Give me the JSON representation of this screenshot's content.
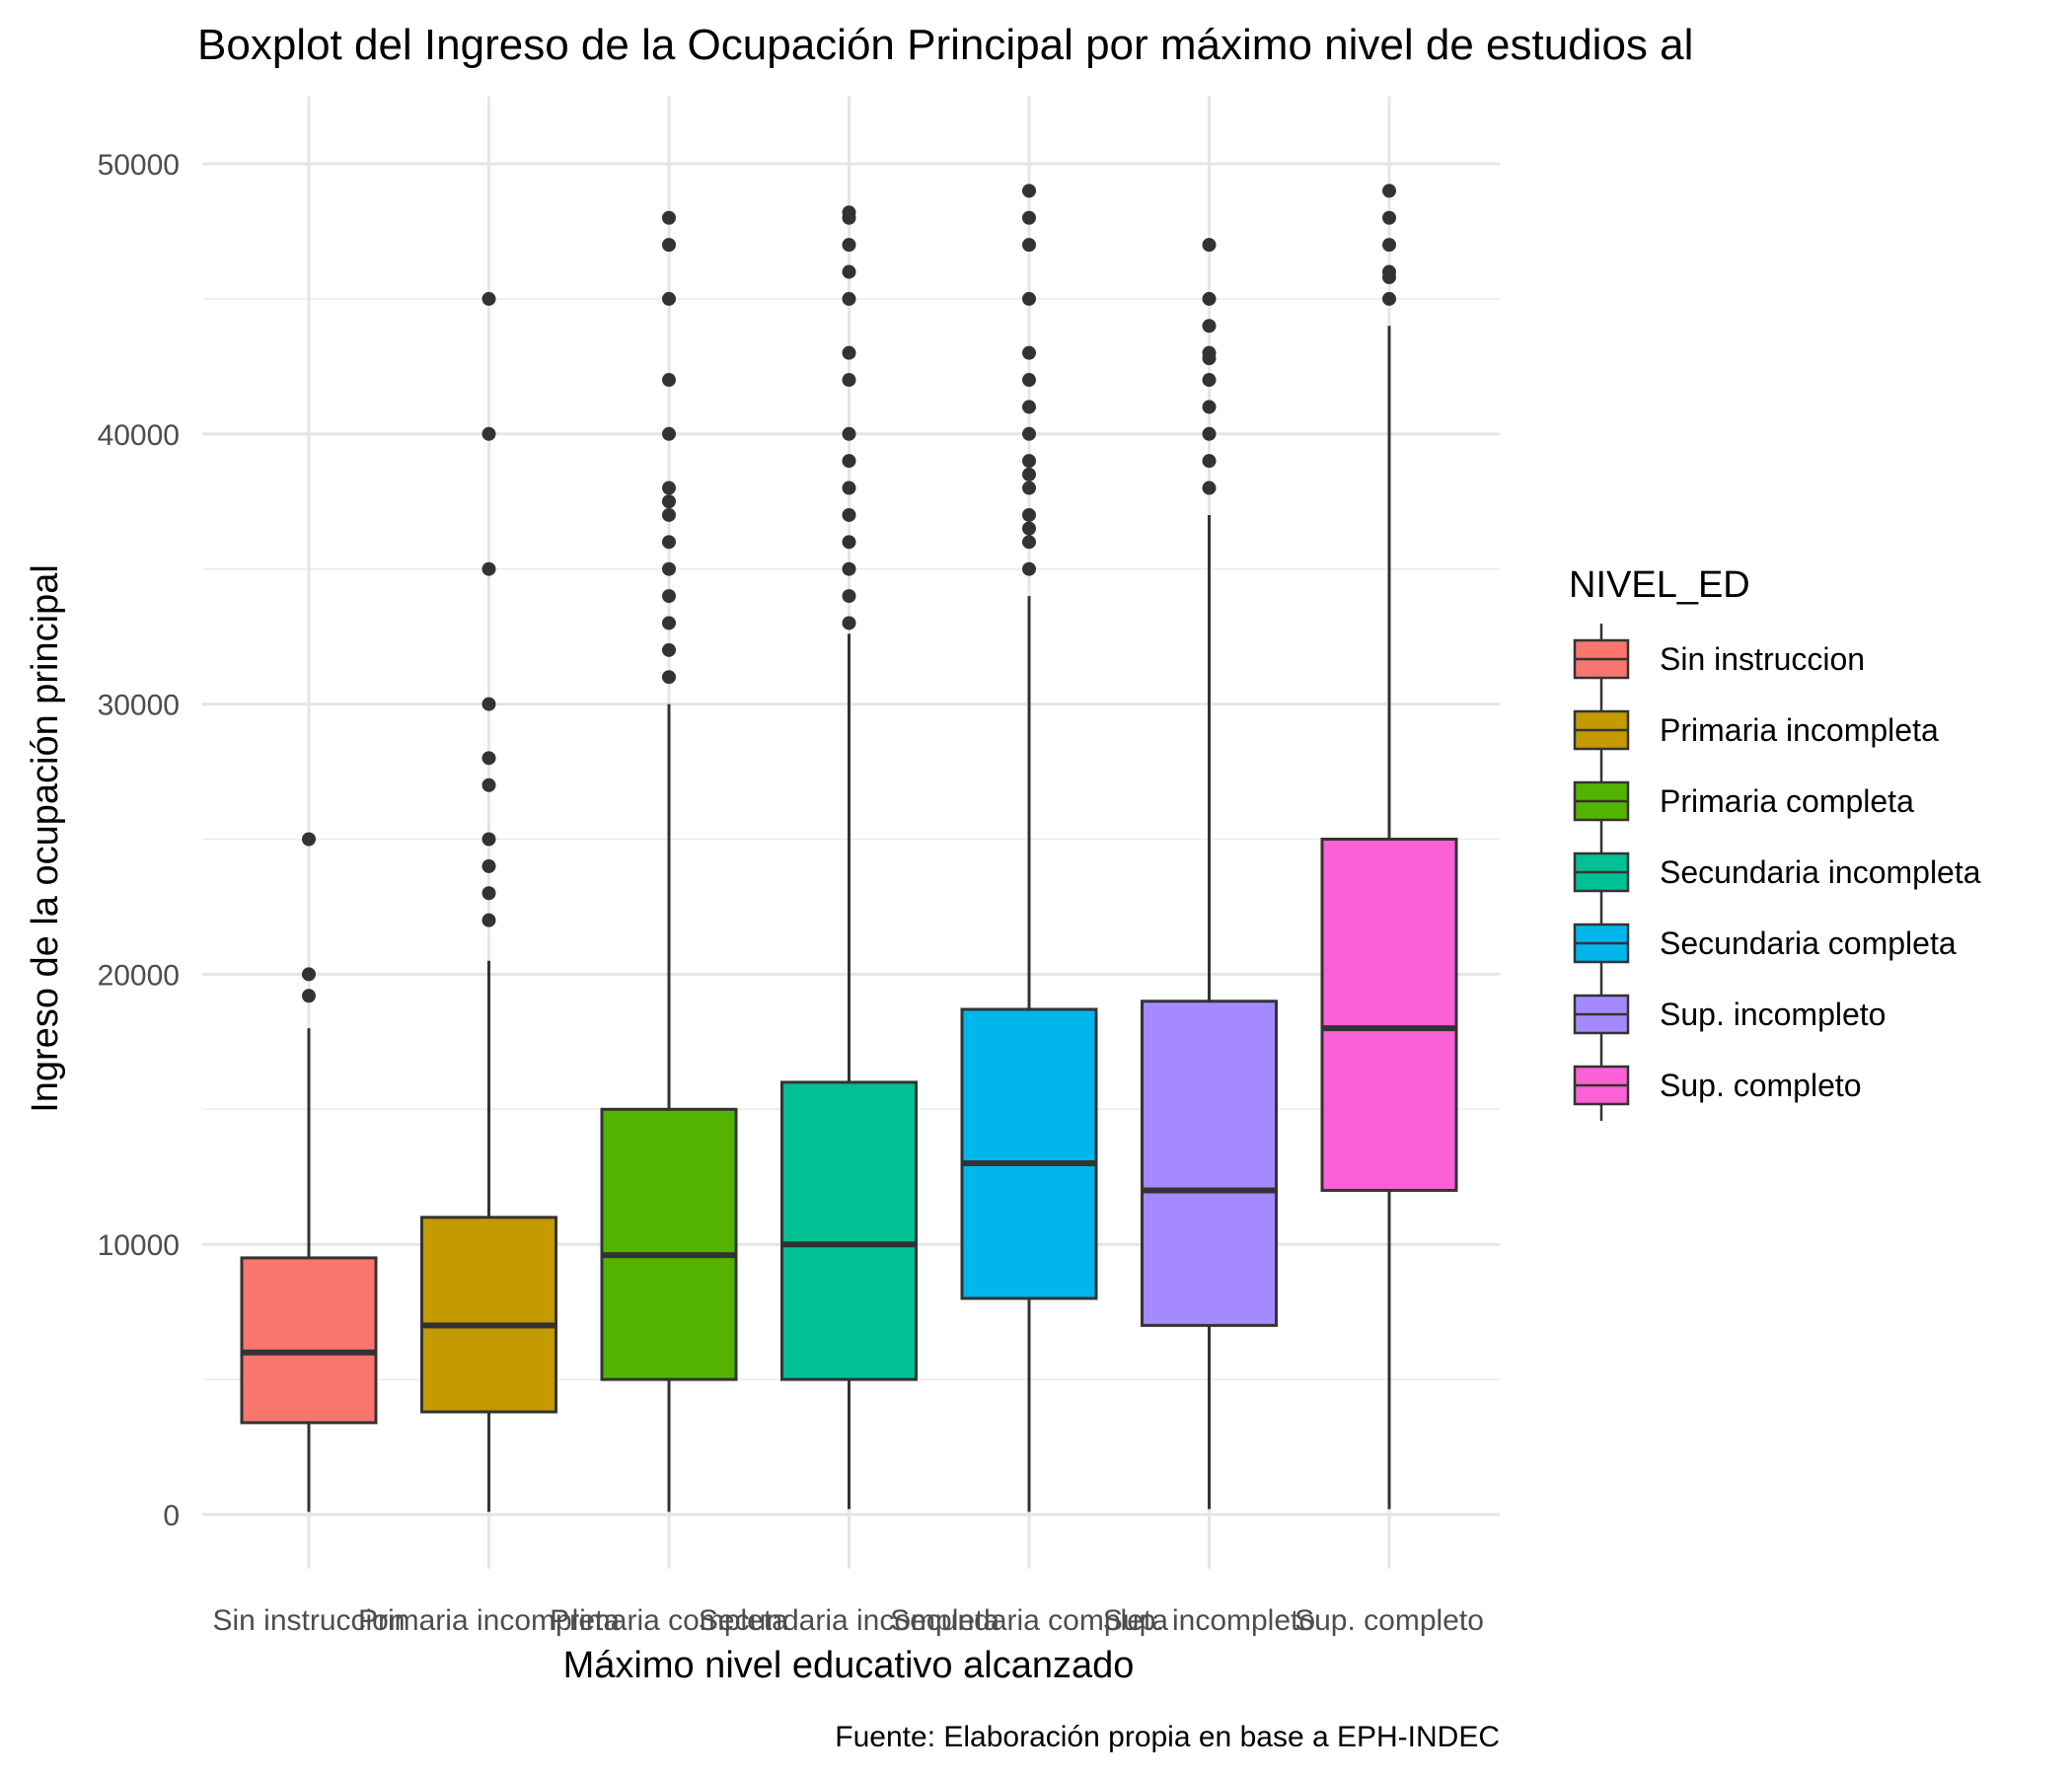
{
  "chart_data": {
    "type": "boxplot",
    "title": "Boxplot del Ingreso de la Ocupación Principal por máximo nivel de estudios al",
    "xlabel": "Máximo nivel educativo alcanzado",
    "ylabel": "Ingreso de la ocupación principal",
    "caption": "Fuente: Elaboración propia en base a EPH-INDEC",
    "ylim": [
      -2000,
      52500
    ],
    "y_ticks": [
      0,
      10000,
      20000,
      30000,
      40000,
      50000
    ],
    "y_tick_labels": [
      "0",
      "10000",
      "20000",
      "30000",
      "40000",
      "50000"
    ],
    "grid": true,
    "legend": {
      "title": "NIVEL_ED",
      "position": "right"
    },
    "categories": [
      "Sin instruccion",
      "Primaria incompleta",
      "Primaria completa",
      "Secundaria incompleta",
      "Secundaria completa",
      "Sup. incompleto",
      "Sup. completo"
    ],
    "series": [
      {
        "name": "Sin instruccion",
        "color": "#F8766D",
        "whisker_low": 100,
        "q1": 3400,
        "median": 6000,
        "q3": 9500,
        "whisker_high": 18000,
        "outliers": [
          19200,
          20000,
          25000
        ]
      },
      {
        "name": "Primaria incompleta",
        "color": "#C49A00",
        "whisker_low": 100,
        "q1": 3800,
        "median": 7000,
        "q3": 11000,
        "whisker_high": 20500,
        "outliers": [
          22000,
          23000,
          24000,
          25000,
          27000,
          28000,
          30000,
          35000,
          40000,
          45000
        ]
      },
      {
        "name": "Primaria completa",
        "color": "#53B400",
        "whisker_low": 100,
        "q1": 5000,
        "median": 9600,
        "q3": 15000,
        "whisker_high": 30000,
        "outliers": [
          31000,
          32000,
          33000,
          34000,
          35000,
          36000,
          37000,
          37500,
          38000,
          40000,
          42000,
          45000,
          47000,
          48000
        ]
      },
      {
        "name": "Secundaria incompleta",
        "color": "#00C094",
        "whisker_low": 200,
        "q1": 5000,
        "median": 10000,
        "q3": 16000,
        "whisker_high": 32600,
        "outliers": [
          33000,
          34000,
          35000,
          36000,
          37000,
          38000,
          39000,
          40000,
          42000,
          43000,
          45000,
          46000,
          47000,
          48000,
          48200
        ]
      },
      {
        "name": "Secundaria completa",
        "color": "#00B6EB",
        "whisker_low": 100,
        "q1": 8000,
        "median": 13000,
        "q3": 18700,
        "whisker_high": 34000,
        "outliers": [
          35000,
          36000,
          36500,
          37000,
          38000,
          38500,
          39000,
          40000,
          41000,
          42000,
          43000,
          45000,
          47000,
          48000,
          49000
        ]
      },
      {
        "name": "Sup. incompleto",
        "color": "#A58AFF",
        "whisker_low": 200,
        "q1": 7000,
        "median": 12000,
        "q3": 19000,
        "whisker_high": 37000,
        "outliers": [
          38000,
          39000,
          40000,
          41000,
          42000,
          42800,
          43000,
          44000,
          45000,
          47000
        ]
      },
      {
        "name": "Sup. completo",
        "color": "#FB61D7",
        "whisker_low": 200,
        "q1": 12000,
        "median": 18000,
        "q3": 25000,
        "whisker_high": 44000,
        "outliers": [
          45000,
          45800,
          46000,
          47000,
          48000,
          49000
        ]
      }
    ]
  }
}
